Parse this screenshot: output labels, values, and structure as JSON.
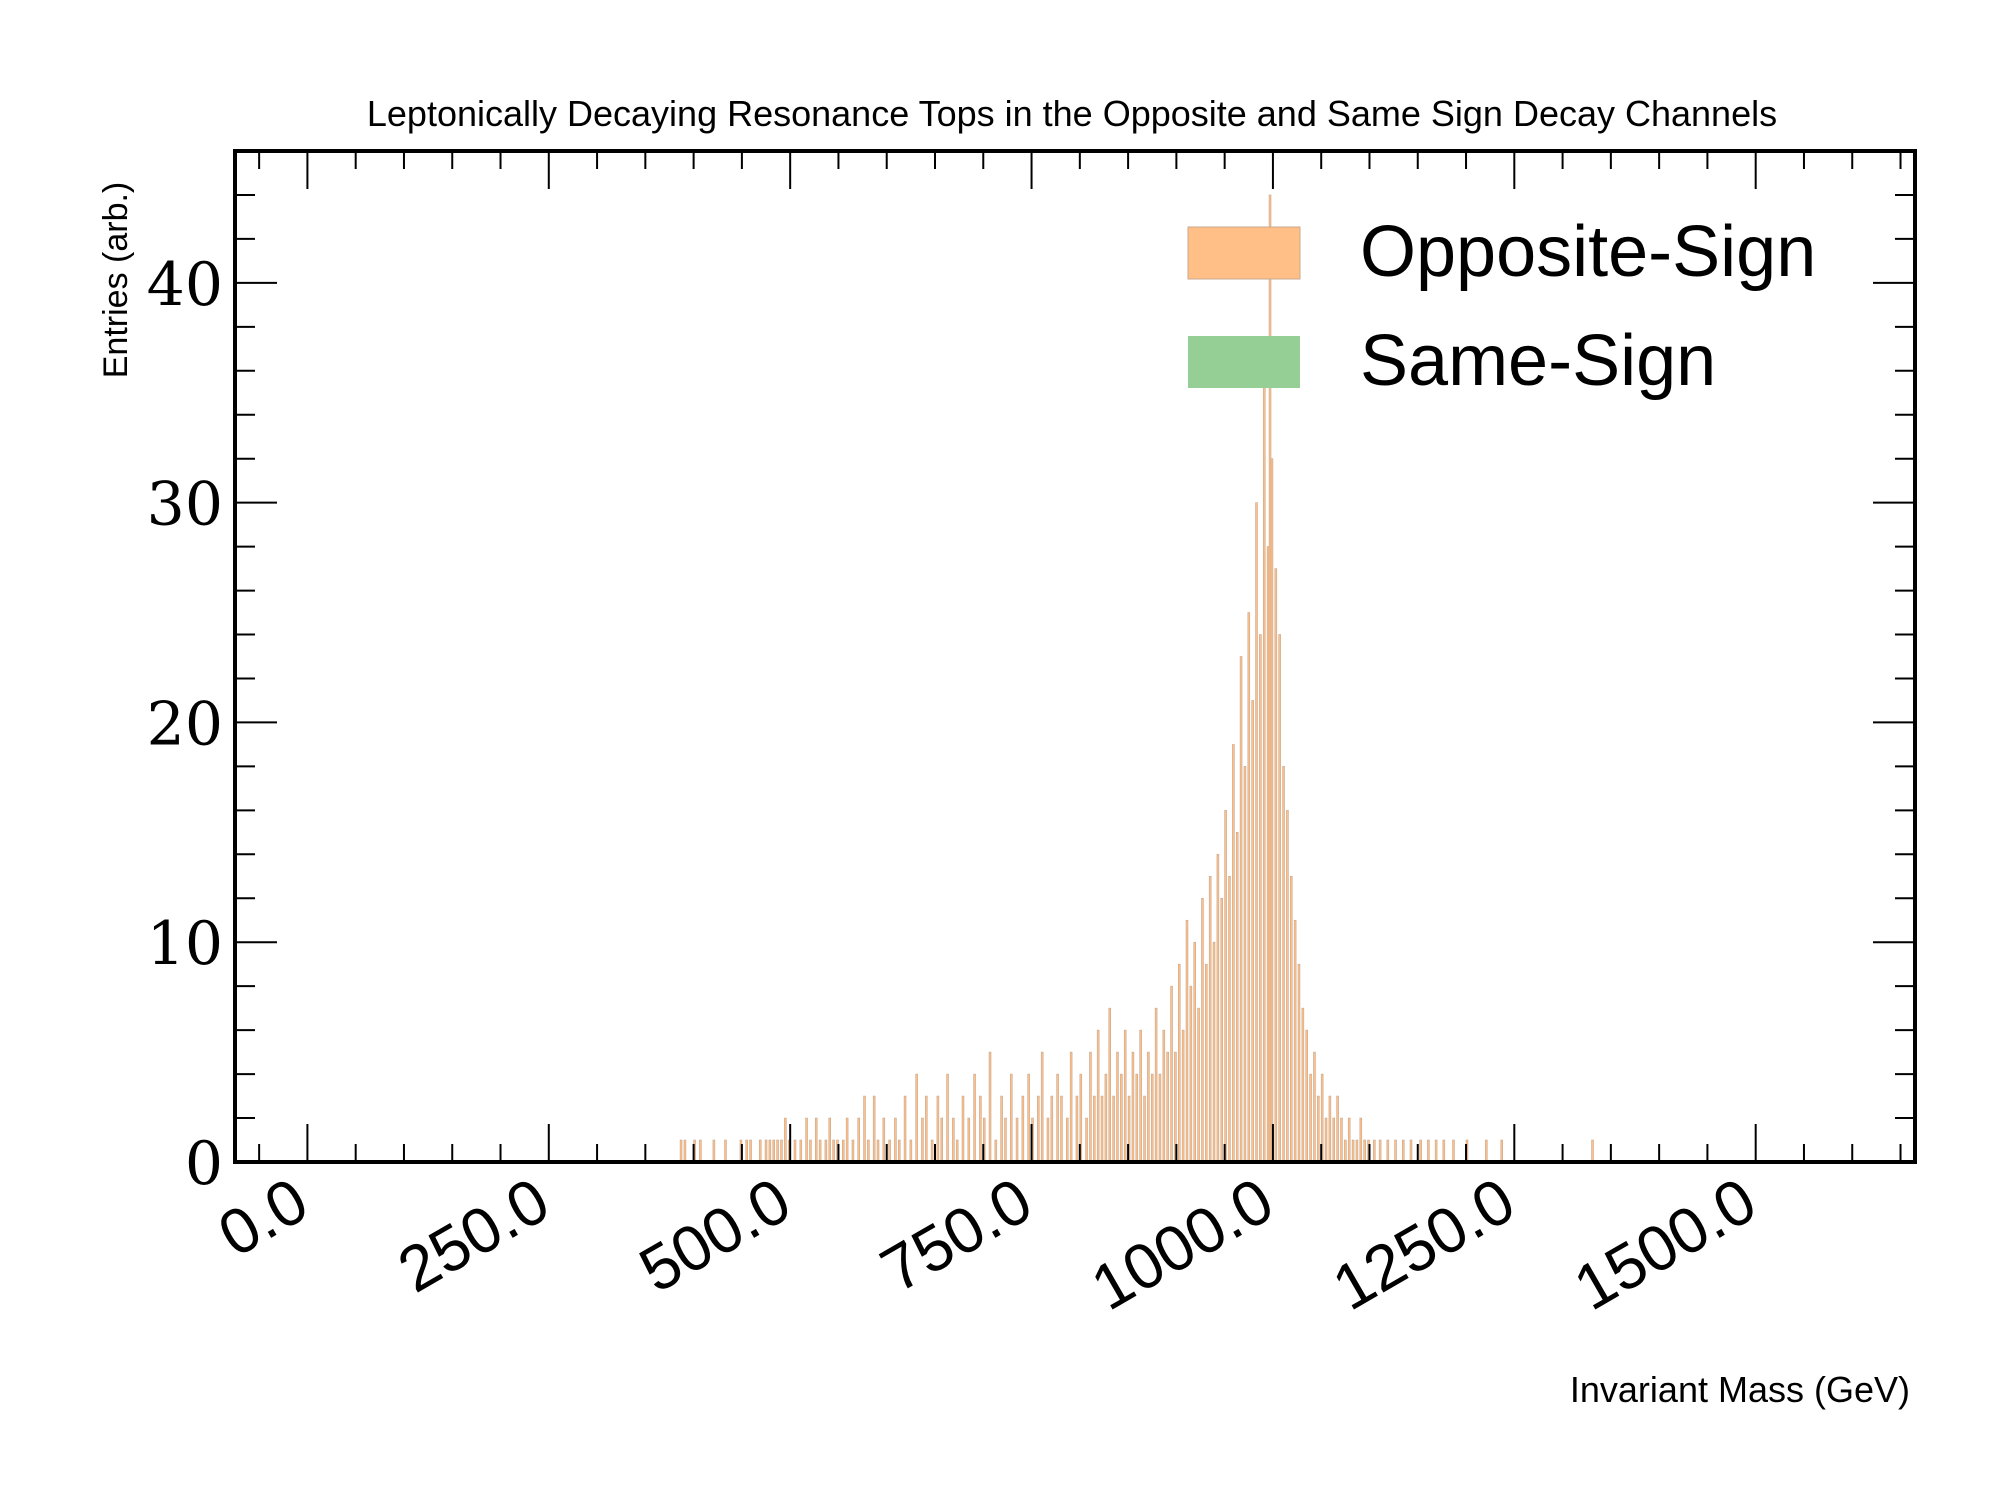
{
  "chart_data": {
    "type": "bar",
    "title": "Leptonically Decaying Resonance Tops in the Opposite and Same Sign Decay Channels",
    "xlabel": "Invariant Mass (GeV)",
    "ylabel": "Entries (arb.)",
    "xlim": [
      -75,
      1665
    ],
    "ylim": [
      0,
      46
    ],
    "xticks": [
      {
        "value": 0,
        "label": "0.0"
      },
      {
        "value": 250,
        "label": "250.0"
      },
      {
        "value": 500,
        "label": "500.0"
      },
      {
        "value": 750,
        "label": "750.0"
      },
      {
        "value": 1000,
        "label": "1000.0"
      },
      {
        "value": 1250,
        "label": "1250.0"
      },
      {
        "value": 1500,
        "label": "1500.0"
      }
    ],
    "yticks": [
      {
        "value": 0,
        "label": "0"
      },
      {
        "value": 10,
        "label": "10"
      },
      {
        "value": 20,
        "label": "20"
      },
      {
        "value": 30,
        "label": "30"
      },
      {
        "value": 40,
        "label": "40"
      }
    ],
    "grid": false,
    "legend_position": "top-right",
    "series": [
      {
        "name": "Opposite-Sign",
        "color": "#ffbf86",
        "edge_color": "#c8a890",
        "bin_width": 2,
        "bins": [
          [
            386,
            1
          ],
          [
            390,
            1
          ],
          [
            400,
            1
          ],
          [
            406,
            1
          ],
          [
            420,
            1
          ],
          [
            432,
            1
          ],
          [
            448,
            1
          ],
          [
            454,
            1
          ],
          [
            458,
            1
          ],
          [
            468,
            1
          ],
          [
            474,
            1
          ],
          [
            478,
            1
          ],
          [
            482,
            1
          ],
          [
            486,
            1
          ],
          [
            490,
            1
          ],
          [
            494,
            2
          ],
          [
            498,
            1
          ],
          [
            504,
            1
          ],
          [
            510,
            1
          ],
          [
            516,
            2
          ],
          [
            520,
            1
          ],
          [
            526,
            2
          ],
          [
            530,
            1
          ],
          [
            536,
            1
          ],
          [
            540,
            2
          ],
          [
            544,
            1
          ],
          [
            548,
            1
          ],
          [
            554,
            1
          ],
          [
            558,
            2
          ],
          [
            564,
            1
          ],
          [
            570,
            2
          ],
          [
            576,
            3
          ],
          [
            580,
            1
          ],
          [
            586,
            3
          ],
          [
            590,
            1
          ],
          [
            596,
            2
          ],
          [
            602,
            1
          ],
          [
            608,
            2
          ],
          [
            612,
            1
          ],
          [
            618,
            3
          ],
          [
            624,
            1
          ],
          [
            630,
            4
          ],
          [
            636,
            2
          ],
          [
            640,
            3
          ],
          [
            646,
            1
          ],
          [
            652,
            3
          ],
          [
            656,
            2
          ],
          [
            662,
            4
          ],
          [
            668,
            2
          ],
          [
            672,
            1
          ],
          [
            678,
            3
          ],
          [
            684,
            2
          ],
          [
            690,
            4
          ],
          [
            696,
            3
          ],
          [
            700,
            2
          ],
          [
            706,
            5
          ],
          [
            712,
            1
          ],
          [
            718,
            3
          ],
          [
            722,
            2
          ],
          [
            728,
            4
          ],
          [
            734,
            2
          ],
          [
            740,
            3
          ],
          [
            746,
            4
          ],
          [
            750,
            2
          ],
          [
            756,
            3
          ],
          [
            760,
            5
          ],
          [
            766,
            2
          ],
          [
            770,
            3
          ],
          [
            776,
            4
          ],
          [
            780,
            3
          ],
          [
            786,
            2
          ],
          [
            790,
            5
          ],
          [
            796,
            3
          ],
          [
            800,
            4
          ],
          [
            806,
            2
          ],
          [
            810,
            5
          ],
          [
            814,
            3
          ],
          [
            818,
            6
          ],
          [
            822,
            3
          ],
          [
            826,
            4
          ],
          [
            830,
            7
          ],
          [
            834,
            3
          ],
          [
            838,
            5
          ],
          [
            842,
            4
          ],
          [
            846,
            6
          ],
          [
            850,
            3
          ],
          [
            854,
            5
          ],
          [
            858,
            4
          ],
          [
            862,
            6
          ],
          [
            866,
            3
          ],
          [
            870,
            5
          ],
          [
            874,
            4
          ],
          [
            878,
            7
          ],
          [
            882,
            4
          ],
          [
            886,
            6
          ],
          [
            890,
            5
          ],
          [
            894,
            8
          ],
          [
            898,
            5
          ],
          [
            902,
            9
          ],
          [
            906,
            6
          ],
          [
            910,
            11
          ],
          [
            914,
            8
          ],
          [
            918,
            10
          ],
          [
            922,
            7
          ],
          [
            926,
            12
          ],
          [
            930,
            9
          ],
          [
            934,
            13
          ],
          [
            938,
            10
          ],
          [
            942,
            14
          ],
          [
            946,
            12
          ],
          [
            950,
            16
          ],
          [
            954,
            13
          ],
          [
            958,
            19
          ],
          [
            962,
            15
          ],
          [
            966,
            23
          ],
          [
            970,
            18
          ],
          [
            974,
            25
          ],
          [
            978,
            21
          ],
          [
            982,
            30
          ],
          [
            986,
            24
          ],
          [
            990,
            36
          ],
          [
            994,
            28
          ],
          [
            996,
            44
          ],
          [
            998,
            32
          ],
          [
            1002,
            27
          ],
          [
            1006,
            24
          ],
          [
            1010,
            18
          ],
          [
            1014,
            16
          ],
          [
            1018,
            13
          ],
          [
            1022,
            11
          ],
          [
            1026,
            9
          ],
          [
            1030,
            7
          ],
          [
            1034,
            6
          ],
          [
            1038,
            4
          ],
          [
            1042,
            5
          ],
          [
            1046,
            3
          ],
          [
            1050,
            4
          ],
          [
            1054,
            2
          ],
          [
            1058,
            3
          ],
          [
            1062,
            2
          ],
          [
            1066,
            3
          ],
          [
            1070,
            2
          ],
          [
            1074,
            1
          ],
          [
            1078,
            2
          ],
          [
            1082,
            1
          ],
          [
            1086,
            1
          ],
          [
            1090,
            2
          ],
          [
            1094,
            1
          ],
          [
            1098,
            1
          ],
          [
            1104,
            1
          ],
          [
            1110,
            1
          ],
          [
            1118,
            1
          ],
          [
            1126,
            1
          ],
          [
            1134,
            1
          ],
          [
            1142,
            1
          ],
          [
            1152,
            1
          ],
          [
            1160,
            1
          ],
          [
            1168,
            1
          ],
          [
            1176,
            1
          ],
          [
            1186,
            1
          ],
          [
            1200,
            1
          ],
          [
            1220,
            1
          ],
          [
            1236,
            1
          ],
          [
            1330,
            1
          ]
        ]
      },
      {
        "name": "Same-Sign",
        "color": "#96cf96",
        "bins": []
      }
    ]
  }
}
